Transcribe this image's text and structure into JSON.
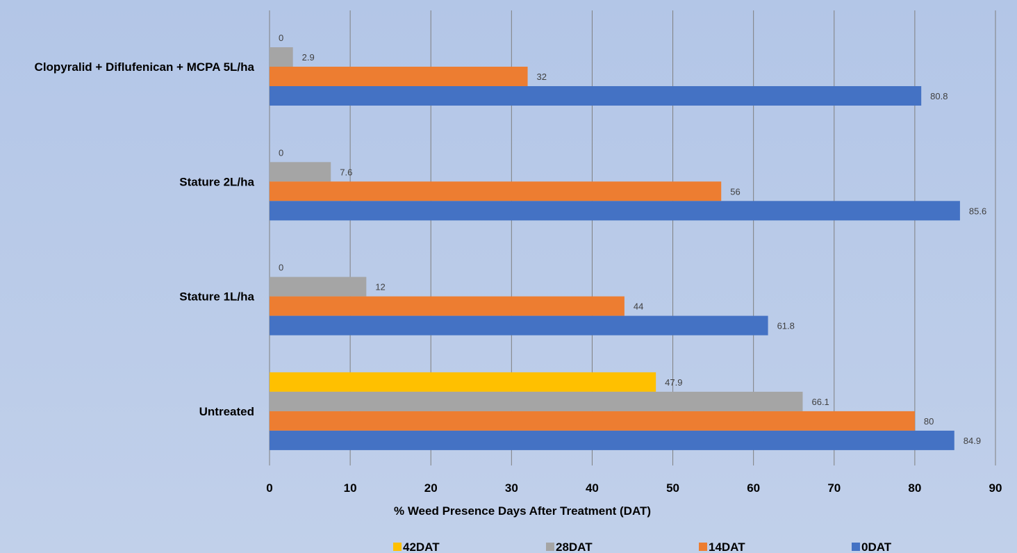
{
  "chart_data": {
    "type": "bar",
    "orientation": "horizontal",
    "categories": [
      "Clopyralid + Diflufenican + MCPA 5L/ha",
      "Stature 2L/ha",
      "Stature 1L/ha",
      "Untreated"
    ],
    "series": [
      {
        "name": "42DAT",
        "color": "#ffc000",
        "values": [
          0,
          0,
          0,
          47.9
        ]
      },
      {
        "name": "28DAT",
        "color": "#a5a5a5",
        "values": [
          2.9,
          7.6,
          12,
          66.1
        ]
      },
      {
        "name": "14DAT",
        "color": "#ed7d31",
        "values": [
          32,
          56,
          44,
          80
        ]
      },
      {
        "name": "0DAT",
        "color": "#4472c4",
        "values": [
          80.8,
          85.6,
          61.8,
          84.9
        ]
      }
    ],
    "xlabel": "% Weed Presence Days After Treatment (DAT)",
    "ylabel": "",
    "xlim": [
      0,
      90
    ],
    "xticks": [
      0,
      10,
      20,
      30,
      40,
      50,
      60,
      70,
      80,
      90
    ],
    "grid": true,
    "legend_position": "bottom",
    "data_labels": true
  }
}
